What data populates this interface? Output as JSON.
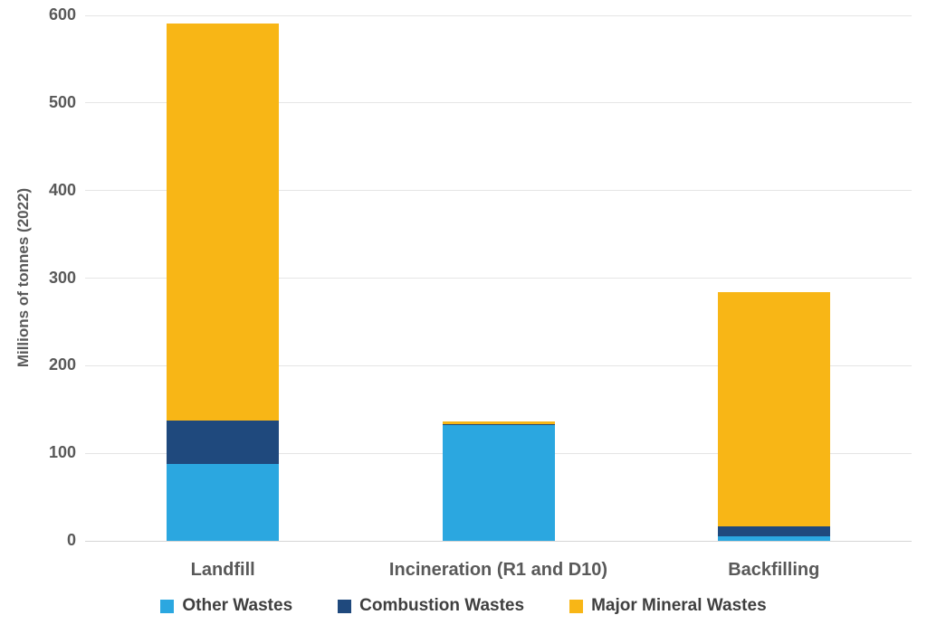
{
  "chart_data": {
    "type": "bar",
    "stacked": true,
    "categories": [
      "Landfill",
      "Incineration (R1 and D10)",
      "Backfilling"
    ],
    "series": [
      {
        "name": "Other Wastes",
        "color": "#2BA7E0",
        "values": [
          88,
          132,
          5
        ]
      },
      {
        "name": "Combustion Wastes",
        "color": "#1F497D",
        "values": [
          49,
          1,
          12
        ]
      },
      {
        "name": "Major Mineral Wastes",
        "color": "#F8B616",
        "values": [
          454,
          3,
          267
        ]
      }
    ],
    "totals": [
      591,
      136,
      284
    ],
    "xlabel": "",
    "ylabel": "Millions of tonnes (2022)",
    "ylim": [
      0,
      600
    ],
    "yticks": [
      0,
      100,
      200,
      300,
      400,
      500,
      600
    ],
    "grid": true,
    "legend_position": "bottom"
  },
  "colors": {
    "gridline": "#E5E5E5",
    "baseline": "#D6D6D6",
    "tick_text": "#595959",
    "category_text": "#595959",
    "legend_text": "#3F3F3F",
    "background": "#FFFFFF"
  }
}
